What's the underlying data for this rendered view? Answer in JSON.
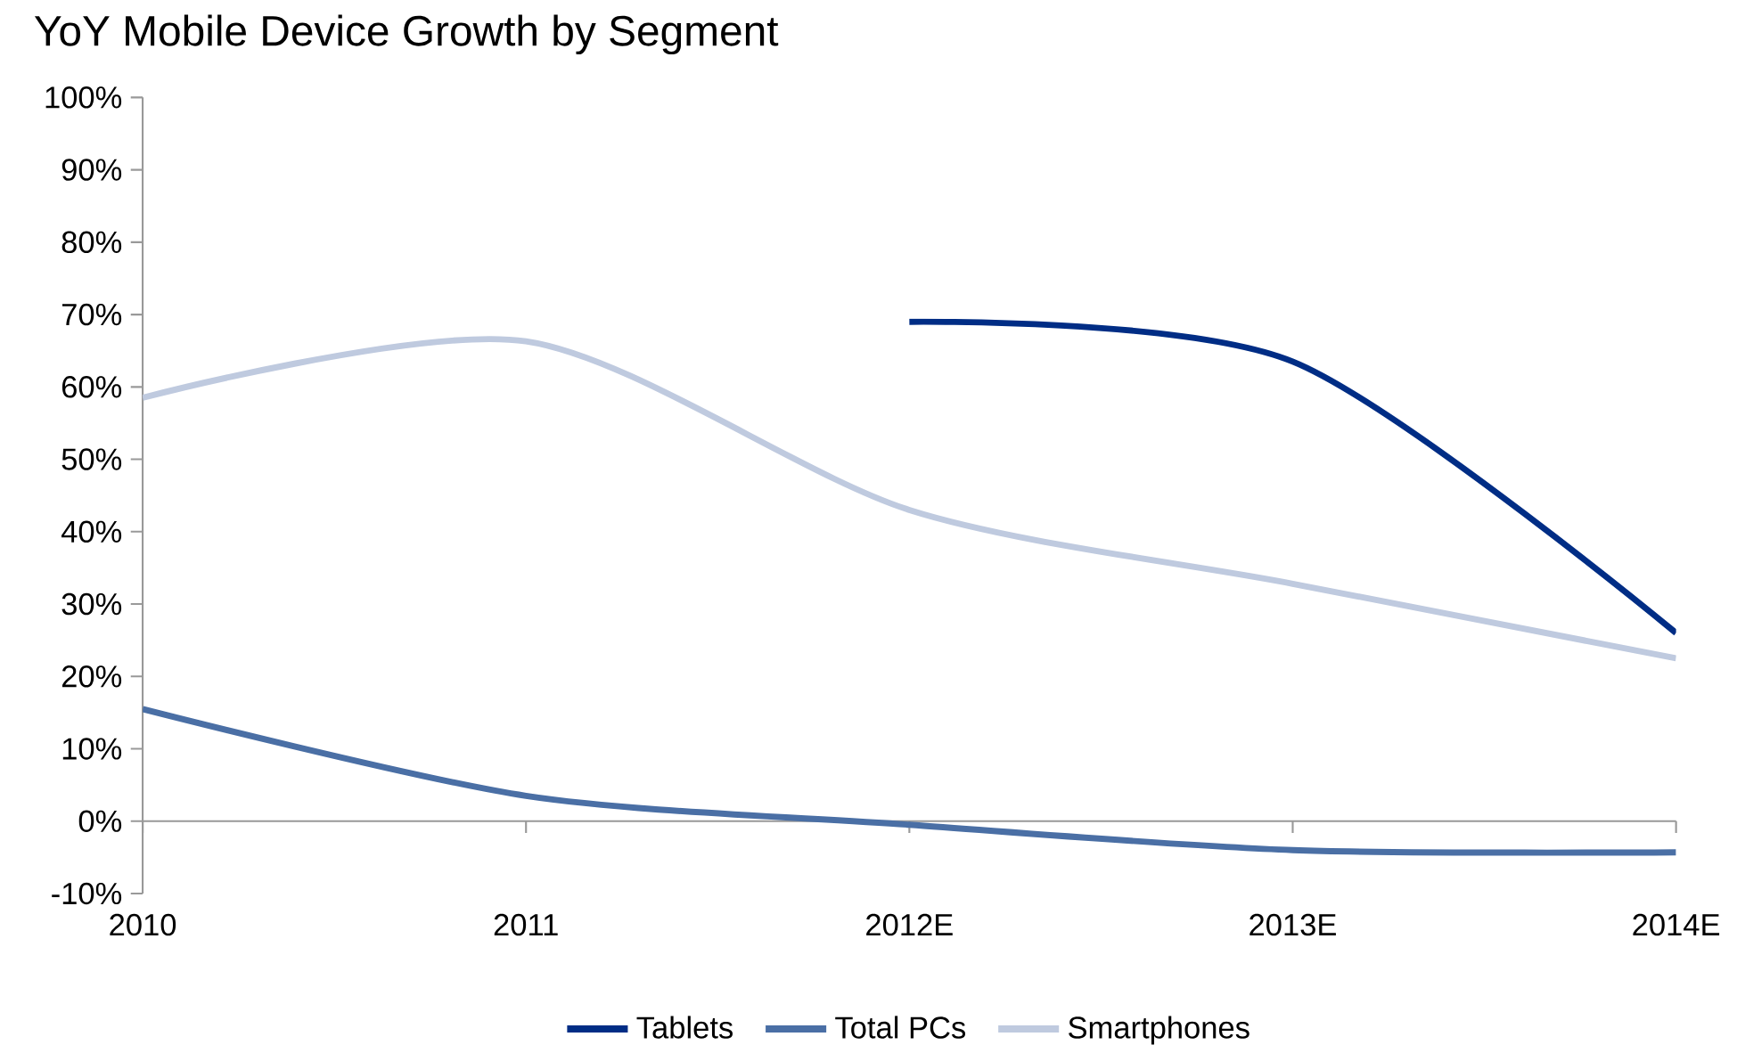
{
  "chart_data": {
    "type": "line",
    "title": "YoY Mobile Device Growth by Segment",
    "categories": [
      "2010",
      "2011",
      "2012E",
      "2013E",
      "2014E"
    ],
    "series": [
      {
        "name": "Tablets",
        "color": "#002d85",
        "values": [
          null,
          null,
          69,
          63.5,
          26
        ]
      },
      {
        "name": "Total PCs",
        "color": "#4a6fa5",
        "values": [
          15.5,
          3.5,
          -0.5,
          -4,
          -4.3
        ]
      },
      {
        "name": "Smartphones",
        "color": "#bfcadf",
        "values": [
          58.5,
          66.3,
          43,
          32.8,
          22.5
        ]
      }
    ],
    "ylim": [
      -10,
      100
    ],
    "yticks": [
      {
        "value": -10,
        "label": "-10%"
      },
      {
        "value": 0,
        "label": "0%"
      },
      {
        "value": 10,
        "label": "10%"
      },
      {
        "value": 20,
        "label": "20%"
      },
      {
        "value": 30,
        "label": "30%"
      },
      {
        "value": 40,
        "label": "40%"
      },
      {
        "value": 50,
        "label": "50%"
      },
      {
        "value": 60,
        "label": "60%"
      },
      {
        "value": 70,
        "label": "70%"
      },
      {
        "value": 80,
        "label": "80%"
      },
      {
        "value": 90,
        "label": "90%"
      },
      {
        "value": 100,
        "label": "100%"
      }
    ],
    "legend": "bottom",
    "marker": "none",
    "line_style": "solid"
  }
}
